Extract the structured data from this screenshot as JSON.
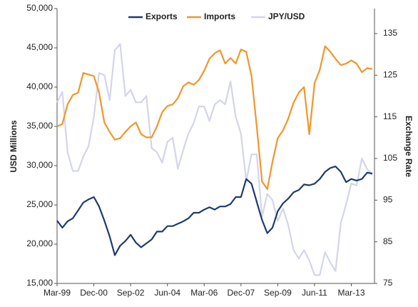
{
  "chart_data": {
    "type": "line",
    "categories": [
      "Mar-99",
      null,
      null,
      null,
      null,
      null,
      null,
      "Dec-00",
      null,
      null,
      null,
      null,
      null,
      null,
      "Sep-02",
      null,
      null,
      null,
      null,
      null,
      null,
      "Jun-04",
      null,
      null,
      null,
      null,
      null,
      null,
      "Mar-06",
      null,
      null,
      null,
      null,
      null,
      null,
      "Dec-07",
      null,
      null,
      null,
      null,
      null,
      null,
      "Sep-09",
      null,
      null,
      null,
      null,
      null,
      null,
      "Jun-11",
      null,
      null,
      null,
      null,
      null,
      null,
      "Mar-13",
      null,
      null,
      null,
      null
    ],
    "ylabel": "USD Millions",
    "y2label": "Exchange Rate",
    "ylim": [
      15000,
      50000
    ],
    "yticks": [
      {
        "value": 15000,
        "label": "15,000"
      },
      {
        "value": 20000,
        "label": "20,000"
      },
      {
        "value": 25000,
        "label": "25,000"
      },
      {
        "value": 30000,
        "label": "30,000"
      },
      {
        "value": 35000,
        "label": "35,000"
      },
      {
        "value": 40000,
        "label": "40,000"
      },
      {
        "value": 45000,
        "label": "45,000"
      },
      {
        "value": 50000,
        "label": "50,000"
      }
    ],
    "y2lim": [
      75,
      141
    ],
    "y2ticks": [
      75,
      85,
      95,
      105,
      115,
      125,
      135
    ],
    "legend": "top",
    "grid": false,
    "series": [
      {
        "name": "Exports",
        "color": "#1f3a6e",
        "values": [
          23000,
          22100,
          22900,
          23300,
          24300,
          25300,
          25700,
          26000,
          24800,
          23000,
          21000,
          18600,
          19800,
          20400,
          21200,
          20200,
          19600,
          20100,
          20600,
          21600,
          21600,
          22300,
          22300,
          22600,
          22900,
          23300,
          24000,
          24000,
          24400,
          24700,
          24400,
          24800,
          24800,
          25100,
          26000,
          26000,
          28300,
          27700,
          25400,
          23100,
          21400,
          22100,
          24200,
          25200,
          25800,
          26600,
          26900,
          27600,
          27500,
          27700,
          28300,
          29200,
          29700,
          29900,
          29200,
          27900,
          28300,
          28100,
          28300,
          29100,
          29000
        ]
      },
      {
        "name": "Imports",
        "color": "#f0962a",
        "values": [
          35000,
          35300,
          37800,
          39000,
          39300,
          41800,
          41600,
          41400,
          39300,
          35500,
          34300,
          33300,
          33500,
          34300,
          35000,
          35500,
          34000,
          33600,
          33600,
          35000,
          36800,
          37600,
          37800,
          38600,
          40100,
          40600,
          40300,
          40900,
          42100,
          43600,
          44300,
          44700,
          43000,
          43700,
          43000,
          44800,
          44500,
          41400,
          35000,
          28000,
          27000,
          30500,
          33500,
          34500,
          36000,
          38000,
          39300,
          40000,
          34000,
          40500,
          42200,
          45200,
          44500,
          43600,
          42800,
          43000,
          43400,
          43000,
          41900,
          42400,
          42300
        ]
      },
      {
        "name": "JPY/USD",
        "color": "#d3d5ea",
        "axis": "y2",
        "values": [
          118.5,
          121,
          106.5,
          102,
          102,
          105.5,
          108,
          115,
          125.5,
          125,
          119,
          131,
          132.5,
          120,
          121.5,
          118.5,
          118.5,
          120,
          107.5,
          106.5,
          104,
          109,
          110,
          102.5,
          107,
          111,
          113.5,
          117.5,
          117.5,
          114,
          118,
          119,
          118,
          123.5,
          115,
          111,
          99.5,
          106,
          106,
          91,
          96.5,
          95,
          90,
          93,
          89,
          83,
          81,
          83,
          80.5,
          77,
          77,
          82.5,
          80,
          78,
          89.5,
          94,
          99,
          98.5,
          105,
          102.5,
          101
        ]
      }
    ]
  }
}
